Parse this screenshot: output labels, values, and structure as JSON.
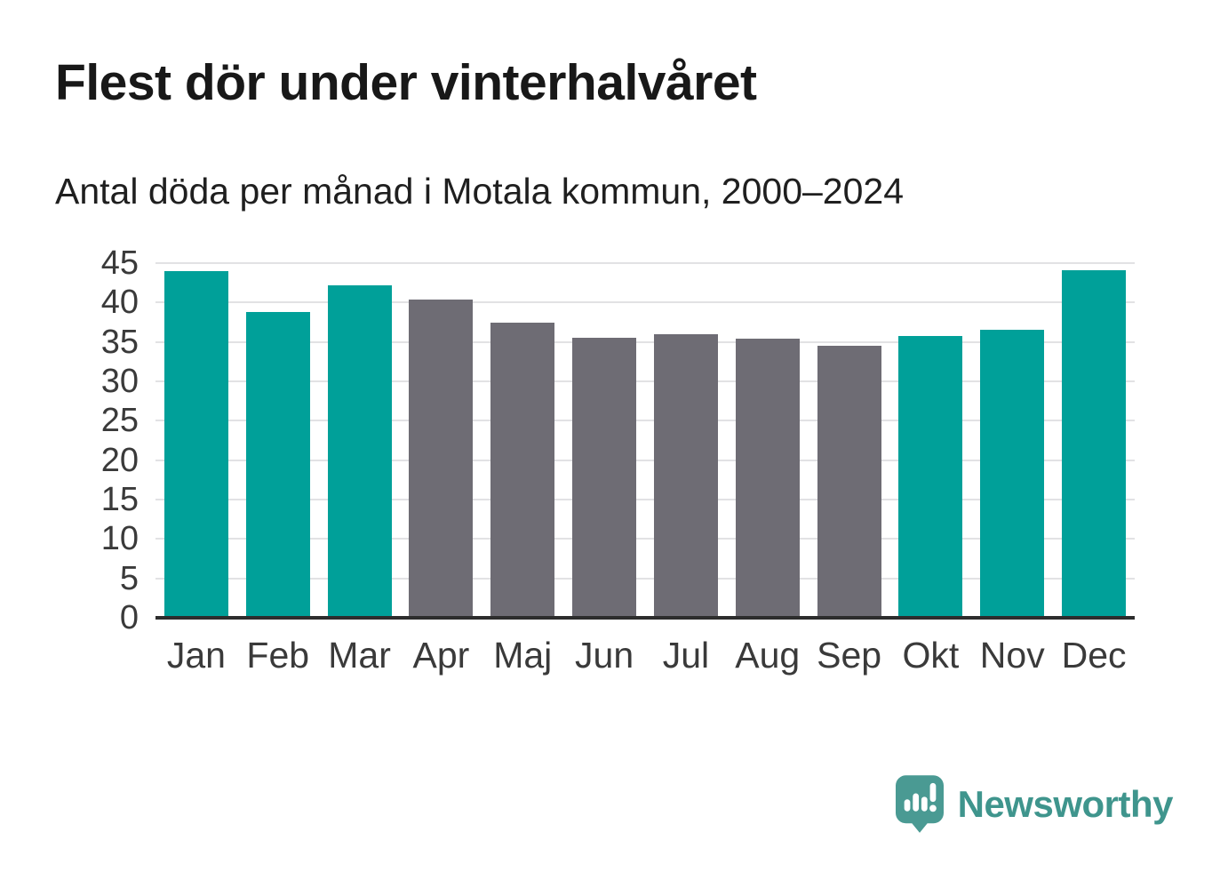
{
  "chart_data": {
    "type": "bar",
    "title": "Flest dör under vinterhalvåret",
    "subtitle": "Antal döda per månad i Motala kommun, 2000–2024",
    "categories": [
      "Jan",
      "Feb",
      "Mar",
      "Apr",
      "Maj",
      "Jun",
      "Jul",
      "Aug",
      "Sep",
      "Okt",
      "Nov",
      "Dec"
    ],
    "values": [
      44.0,
      38.8,
      42.2,
      40.4,
      37.5,
      35.5,
      36.0,
      35.4,
      34.5,
      35.7,
      36.5,
      44.1
    ],
    "bar_palette": [
      "highlight",
      "highlight",
      "highlight",
      "muted",
      "muted",
      "muted",
      "muted",
      "muted",
      "muted",
      "highlight",
      "highlight",
      "highlight"
    ],
    "xlabel": "",
    "ylabel": "",
    "ylim": [
      0,
      45
    ],
    "yticks": [
      0,
      5,
      10,
      15,
      20,
      25,
      30,
      35,
      40,
      45
    ],
    "grid": "horizontal",
    "legend": false,
    "colors": {
      "highlight": "#00a099",
      "muted": "#6e6c74",
      "gridline": "#e2e2e4",
      "axis_line": "#2d2d2d",
      "tick_label": "#3a3a3a"
    }
  },
  "brand": {
    "name": "Newsworthy",
    "logo_icon": "bar-chart-speech-bubble",
    "wordmark_color": "#3f958d",
    "icon_color": "#4a9a93"
  }
}
